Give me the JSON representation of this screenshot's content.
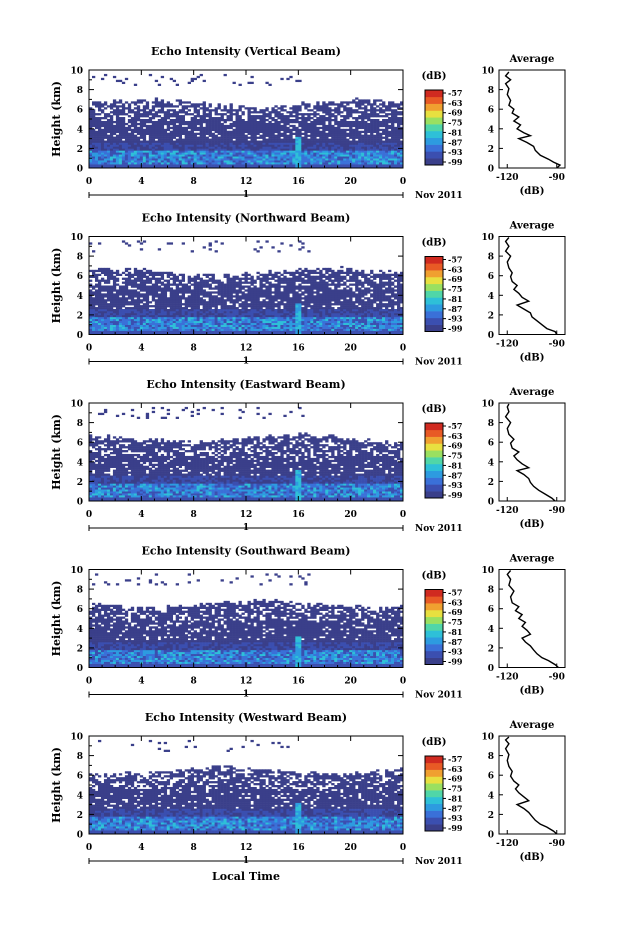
{
  "panels": [
    {
      "title": "Echo Intensity (Vertical Beam)",
      "echo_top_km": 6.6,
      "core_top_km": 4.7,
      "strong_layer_km": 1.6,
      "profile": [
        [
          -90,
          0
        ],
        [
          -88,
          0.3
        ],
        [
          -92,
          0.6
        ],
        [
          -95,
          0.9
        ],
        [
          -100,
          1.3
        ],
        [
          -103,
          1.8
        ],
        [
          -104,
          2.2
        ],
        [
          -108,
          2.6
        ],
        [
          -113,
          3.0
        ],
        [
          -106,
          3.3
        ],
        [
          -110,
          3.6
        ],
        [
          -114,
          4.0
        ],
        [
          -112,
          4.4
        ],
        [
          -116,
          4.8
        ],
        [
          -113,
          5.2
        ],
        [
          -117,
          5.6
        ],
        [
          -116,
          6.0
        ],
        [
          -119,
          6.4
        ],
        [
          -118,
          6.9
        ],
        [
          -120,
          7.5
        ],
        [
          -119,
          8.1
        ],
        [
          -121,
          8.6
        ],
        [
          -118,
          9.0
        ],
        [
          -121,
          9.4
        ],
        [
          -119,
          9.8
        ]
      ]
    },
    {
      "title": "Echo Intensity (Northward Beam)",
      "echo_top_km": 6.4,
      "core_top_km": 4.5,
      "strong_layer_km": 1.5,
      "profile": [
        [
          -90,
          0
        ],
        [
          -91,
          0.3
        ],
        [
          -96,
          0.6
        ],
        [
          -99,
          1.0
        ],
        [
          -102,
          1.4
        ],
        [
          -105,
          1.8
        ],
        [
          -106,
          2.2
        ],
        [
          -110,
          2.6
        ],
        [
          -114,
          3.0
        ],
        [
          -107,
          3.4
        ],
        [
          -111,
          3.8
        ],
        [
          -113,
          4.2
        ],
        [
          -116,
          4.6
        ],
        [
          -114,
          5.0
        ],
        [
          -117,
          5.4
        ],
        [
          -118,
          5.9
        ],
        [
          -117,
          6.3
        ],
        [
          -119,
          6.8
        ],
        [
          -120,
          7.4
        ],
        [
          -118,
          8.0
        ],
        [
          -121,
          8.5
        ],
        [
          -119,
          9.0
        ],
        [
          -121,
          9.5
        ],
        [
          -119,
          9.9
        ]
      ]
    },
    {
      "title": "Echo Intensity (Eastward Beam)",
      "echo_top_km": 6.4,
      "core_top_km": 4.6,
      "strong_layer_km": 1.5,
      "profile": [
        [
          -91,
          0
        ],
        [
          -93,
          0.3
        ],
        [
          -97,
          0.7
        ],
        [
          -101,
          1.1
        ],
        [
          -104,
          1.5
        ],
        [
          -106,
          1.9
        ],
        [
          -107,
          2.3
        ],
        [
          -110,
          2.7
        ],
        [
          -114,
          3.1
        ],
        [
          -107,
          3.4
        ],
        [
          -111,
          3.8
        ],
        [
          -114,
          4.2
        ],
        [
          -116,
          4.6
        ],
        [
          -113,
          5.0
        ],
        [
          -117,
          5.4
        ],
        [
          -118,
          5.9
        ],
        [
          -116,
          6.3
        ],
        [
          -119,
          6.8
        ],
        [
          -120,
          7.4
        ],
        [
          -118,
          8.0
        ],
        [
          -121,
          8.6
        ],
        [
          -119,
          9.1
        ],
        [
          -120,
          9.6
        ],
        [
          -119,
          9.9
        ]
      ]
    },
    {
      "title": "Echo Intensity (Southward Beam)",
      "echo_top_km": 6.5,
      "core_top_km": 4.7,
      "strong_layer_km": 1.6,
      "profile": [
        [
          -89,
          0
        ],
        [
          -91,
          0.3
        ],
        [
          -95,
          0.7
        ],
        [
          -99,
          1.0
        ],
        [
          -102,
          1.4
        ],
        [
          -104,
          1.8
        ],
        [
          -106,
          2.2
        ],
        [
          -109,
          2.6
        ],
        [
          -111,
          3.0
        ],
        [
          -106,
          3.4
        ],
        [
          -108,
          3.8
        ],
        [
          -111,
          4.2
        ],
        [
          -109,
          4.6
        ],
        [
          -113,
          5.0
        ],
        [
          -111,
          5.4
        ],
        [
          -115,
          5.8
        ],
        [
          -113,
          6.2
        ],
        [
          -117,
          6.6
        ],
        [
          -118,
          7.2
        ],
        [
          -116,
          7.8
        ],
        [
          -119,
          8.4
        ],
        [
          -118,
          9.0
        ],
        [
          -120,
          9.5
        ],
        [
          -118,
          9.9
        ]
      ]
    },
    {
      "title": "Echo Intensity (Westward Beam)",
      "echo_top_km": 6.5,
      "core_top_km": 4.6,
      "strong_layer_km": 1.6,
      "profile": [
        [
          -90,
          0
        ],
        [
          -92,
          0.3
        ],
        [
          -96,
          0.7
        ],
        [
          -100,
          1.0
        ],
        [
          -103,
          1.4
        ],
        [
          -105,
          1.8
        ],
        [
          -107,
          2.2
        ],
        [
          -110,
          2.6
        ],
        [
          -114,
          3.0
        ],
        [
          -107,
          3.4
        ],
        [
          -110,
          3.8
        ],
        [
          -113,
          4.2
        ],
        [
          -115,
          4.6
        ],
        [
          -113,
          5.0
        ],
        [
          -116,
          5.4
        ],
        [
          -118,
          5.9
        ],
        [
          -117,
          6.4
        ],
        [
          -119,
          6.9
        ],
        [
          -120,
          7.5
        ],
        [
          -119,
          8.1
        ],
        [
          -121,
          8.7
        ],
        [
          -119,
          9.2
        ],
        [
          -121,
          9.6
        ],
        [
          -119,
          9.9
        ]
      ]
    }
  ],
  "ylabel": "Height (km)",
  "y_ticks": [
    "0",
    "2",
    "4",
    "6",
    "8",
    "10"
  ],
  "x_ticks": [
    "0",
    "4",
    "8",
    "12",
    "16",
    "20",
    "0"
  ],
  "date_label": "1",
  "month_label": "Nov 2011",
  "xlabel": "Local Time",
  "colorbar_unit": "(dB)",
  "colorbar_ticks": [
    "-57",
    "-63",
    "-69",
    "-75",
    "-81",
    "-87",
    "-93",
    "-99"
  ],
  "colors": [
    "#3a3f8a",
    "#3b4fb0",
    "#3a70d8",
    "#2d9be0",
    "#2ec0d8",
    "#50d6a8",
    "#9ae060",
    "#e8e040",
    "#f0a030",
    "#e85a25",
    "#d02a20"
  ],
  "avg_title": "Average",
  "avg_x_ticks": [
    "-120",
    "-90"
  ],
  "avg_unit": "(dB)",
  "chart_data": [
    {
      "type": "heatmap",
      "title": "Echo Intensity (Vertical Beam)",
      "ylabel": "Height (km)",
      "ylim": [
        0,
        10
      ],
      "xlabel": "Local Time",
      "xlim": [
        0,
        24
      ],
      "colorbar": "(dB)",
      "clim": [
        -99,
        -57
      ]
    },
    {
      "type": "heatmap",
      "title": "Echo Intensity (Northward Beam)",
      "ylabel": "Height (km)",
      "ylim": [
        0,
        10
      ],
      "xlabel": "Local Time",
      "xlim": [
        0,
        24
      ],
      "colorbar": "(dB)",
      "clim": [
        -99,
        -57
      ]
    },
    {
      "type": "heatmap",
      "title": "Echo Intensity (Eastward Beam)",
      "ylabel": "Height (km)",
      "ylim": [
        0,
        10
      ],
      "xlabel": "Local Time",
      "xlim": [
        0,
        24
      ],
      "colorbar": "(dB)",
      "clim": [
        -99,
        -57
      ]
    },
    {
      "type": "heatmap",
      "title": "Echo Intensity (Southward Beam)",
      "ylabel": "Height (km)",
      "ylim": [
        0,
        10
      ],
      "xlabel": "Local Time",
      "xlim": [
        0,
        24
      ],
      "colorbar": "(dB)",
      "clim": [
        -99,
        -57
      ]
    },
    {
      "type": "heatmap",
      "title": "Echo Intensity (Westward Beam)",
      "ylabel": "Height (km)",
      "ylim": [
        0,
        10
      ],
      "xlabel": "Local Time",
      "xlim": [
        0,
        24
      ],
      "colorbar": "(dB)",
      "clim": [
        -99,
        -57
      ]
    }
  ]
}
